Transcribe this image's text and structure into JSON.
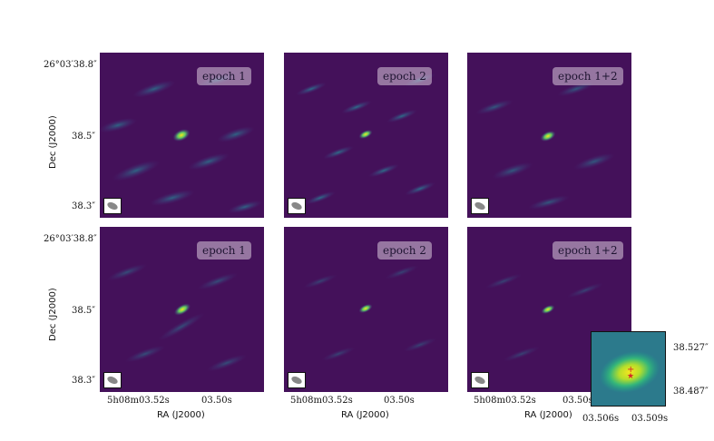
{
  "panels": [
    {
      "label": "epoch 1"
    },
    {
      "label": "epoch 2"
    },
    {
      "label": "epoch 1+2"
    },
    {
      "label": "epoch 1"
    },
    {
      "label": "epoch 2"
    },
    {
      "label": "epoch 1+2"
    }
  ],
  "yticks": {
    "top": "26°03′38.8″",
    "mid": "38.5″",
    "bot": "38.3″"
  },
  "xticks": {
    "left": "5h08m03.52s",
    "right": "03.50s"
  },
  "ylabel": "Dec (J2000)",
  "xlabel": "RA (J2000)",
  "inset": {
    "xticks": [
      "03.506s",
      "03.509s"
    ],
    "yticks": [
      "38.527″",
      "38.487″"
    ]
  },
  "colors": {
    "background": "#3d0f55",
    "mid": "#2f7d8e",
    "peak": "#f4e720"
  }
}
